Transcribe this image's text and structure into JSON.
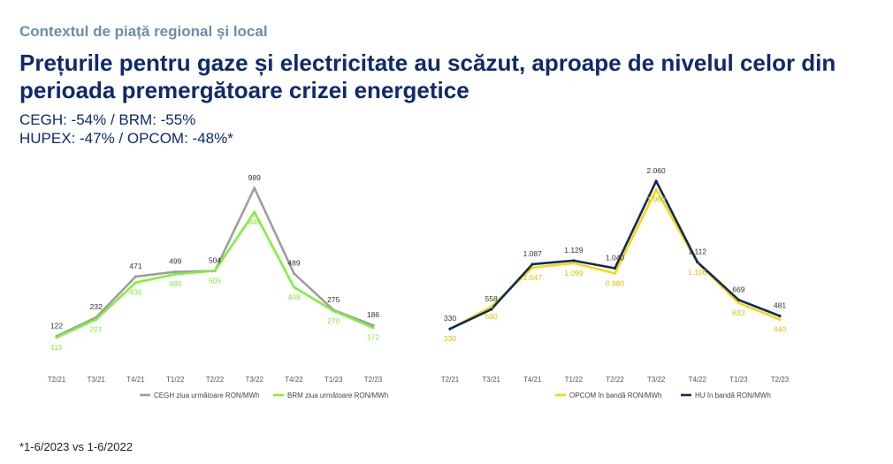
{
  "header": {
    "kicker": "Contextul de piață regional și local",
    "title": "Prețurile pentru gaze și electricitate au scăzut, aproape de nivelul celor din perioada premergătoare crizei energetice",
    "stat_line_1": "CEGH: -54% / BRM: -55%",
    "stat_line_2": "HUPEX: -47% / OPCOM: -48%*"
  },
  "footnote": "*1-6/2023 vs 1-6/2022",
  "chart_data": [
    {
      "type": "line",
      "categories": [
        "T2/21",
        "T3/21",
        "T4/21",
        "T1/22",
        "T2/22",
        "T3/22",
        "T4/22",
        "T1/23",
        "T2/23"
      ],
      "series": [
        {
          "name": "CEGH ziua următoare RON/MWh",
          "color": "#9e9e9e",
          "values": [
            122,
            232,
            471,
            499,
            504,
            989,
            489,
            275,
            186
          ],
          "labels": [
            "122",
            "232",
            "471",
            "499",
            "504",
            "989",
            "489",
            "275",
            "186"
          ]
        },
        {
          "name": "BRM ziua următoare RON/MWh",
          "color": "#7ff03c",
          "values": [
            115,
            221,
            436,
            485,
            505,
            848,
            409,
            270,
            172
          ],
          "labels": [
            "115",
            "221",
            "436",
            "485",
            "505",
            "848",
            "409",
            "270",
            "172"
          ]
        }
      ],
      "ylim": [
        0,
        1200
      ]
    },
    {
      "type": "line",
      "categories": [
        "T2/21",
        "T3/21",
        "T4/21",
        "T1/22",
        "T2/22",
        "T3/22",
        "T4/22",
        "T1/23",
        "T2/23"
      ],
      "series": [
        {
          "name": "OPCOM în bandă RON/MWh",
          "color": "#f5d90a",
          "values": [
            330,
            590,
            1047,
            1099,
            980,
            1960,
            1106,
            633,
            440
          ],
          "labels": [
            "330",
            "590",
            "1.047",
            "1.099",
            "0.980",
            "1.960",
            "1.106",
            "633",
            "440"
          ]
        },
        {
          "name": "HU în bandă RON/MWh",
          "color": "#0e2a5c",
          "values": [
            330,
            558,
            1087,
            1129,
            1040,
            2060,
            1112,
            669,
            481
          ],
          "labels": [
            "330",
            "558",
            "1.087",
            "1.129",
            "1.040",
            "2.060",
            "1.112",
            "669",
            "481"
          ]
        }
      ],
      "ylim": [
        0,
        2400
      ]
    }
  ]
}
